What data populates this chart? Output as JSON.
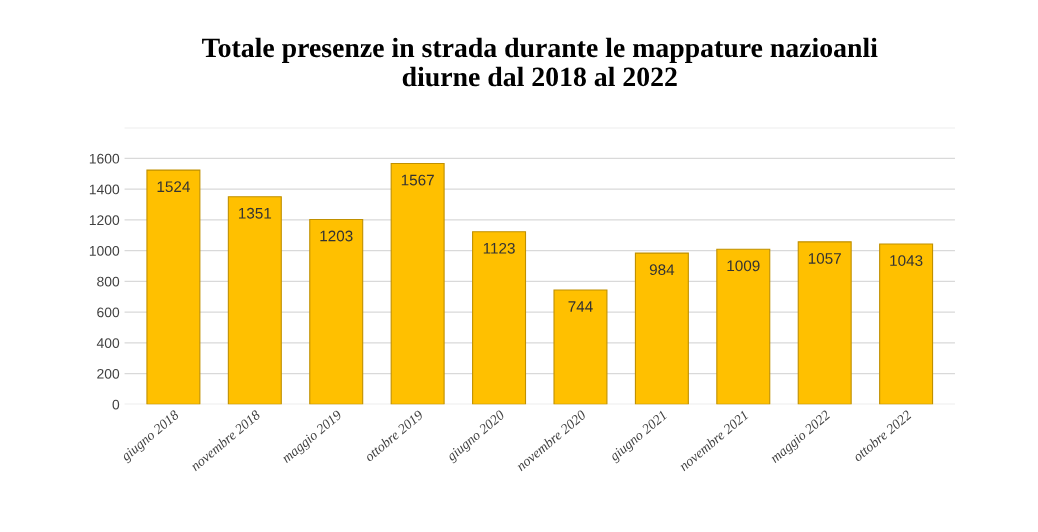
{
  "chart_data": {
    "type": "bar",
    "title": "Totale presenze in strada durante le mappature nazioanli\ndiurne dal 2018 al 2022",
    "categories": [
      "giugno 2018",
      "novembre 2018",
      "maggio 2019",
      "ottobre 2019",
      "giugno 2020",
      "novembre 2020",
      "giugno 2021",
      "novembre 2021",
      "maggio 2022",
      "ottobre 2022"
    ],
    "values": [
      1524,
      1351,
      1203,
      1567,
      1123,
      744,
      984,
      1009,
      1057,
      1043
    ],
    "color": "#ffc000",
    "ylim": [
      0,
      1800
    ],
    "yticks": [
      0,
      200,
      400,
      600,
      800,
      1000,
      1200,
      1400,
      1600,
      {
        "value": 1800,
        "label": null
      }
    ],
    "grid": "y",
    "data_labels": true
  }
}
